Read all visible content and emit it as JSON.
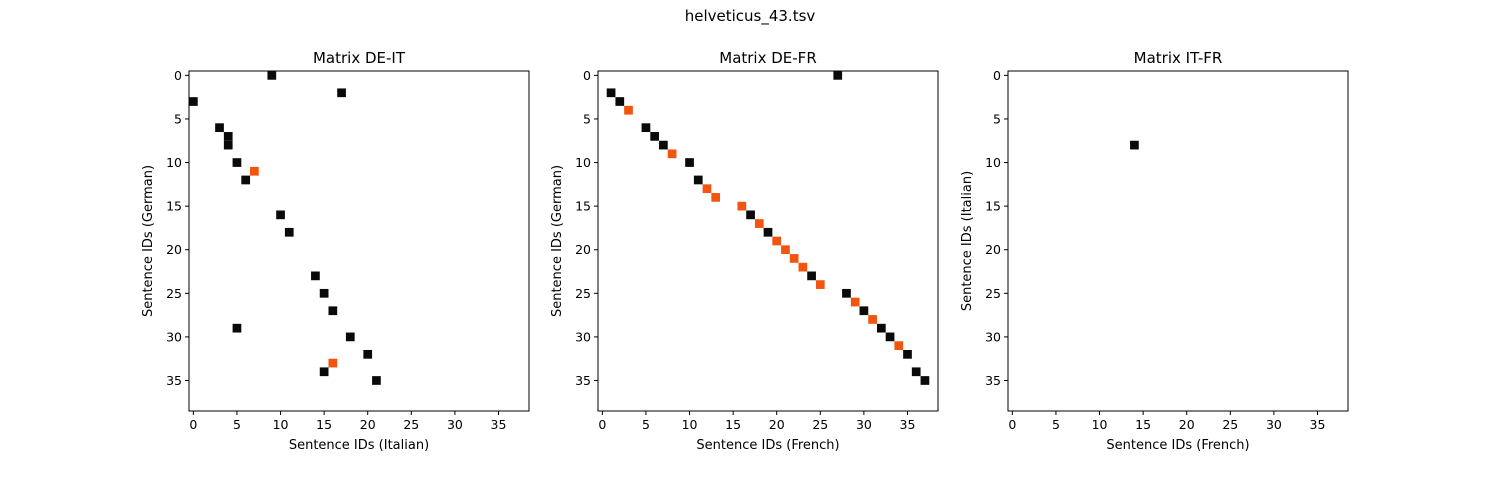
{
  "figure": {
    "suptitle": "helveticus_43.tsv"
  },
  "colors": {
    "black": "#0a0a0a",
    "orange": "#f2550f",
    "frame": "#000000",
    "background": "#ffffff"
  },
  "chart_data": [
    {
      "type": "heatmap",
      "title": "Matrix DE-IT",
      "xlabel": "Sentence IDs (Italian)",
      "ylabel": "Sentence IDs (German)",
      "xlim": [
        -0.5,
        38.5
      ],
      "ylim": [
        38.5,
        -0.5
      ],
      "xticks": [
        0,
        5,
        10,
        15,
        20,
        25,
        30,
        35
      ],
      "yticks": [
        0,
        5,
        10,
        15,
        20,
        25,
        30,
        35
      ],
      "grid": false,
      "cells": [
        {
          "x": 9,
          "y": 0,
          "color": "black"
        },
        {
          "x": 17,
          "y": 2,
          "color": "black"
        },
        {
          "x": 0,
          "y": 3,
          "color": "black"
        },
        {
          "x": 3,
          "y": 6,
          "color": "black"
        },
        {
          "x": 4,
          "y": 7,
          "color": "black"
        },
        {
          "x": 4,
          "y": 8,
          "color": "black"
        },
        {
          "x": 5,
          "y": 10,
          "color": "black"
        },
        {
          "x": 7,
          "y": 11,
          "color": "orange"
        },
        {
          "x": 6,
          "y": 12,
          "color": "black"
        },
        {
          "x": 10,
          "y": 16,
          "color": "black"
        },
        {
          "x": 11,
          "y": 18,
          "color": "black"
        },
        {
          "x": 14,
          "y": 23,
          "color": "black"
        },
        {
          "x": 15,
          "y": 25,
          "color": "black"
        },
        {
          "x": 16,
          "y": 27,
          "color": "black"
        },
        {
          "x": 5,
          "y": 29,
          "color": "black"
        },
        {
          "x": 18,
          "y": 30,
          "color": "black"
        },
        {
          "x": 20,
          "y": 32,
          "color": "black"
        },
        {
          "x": 16,
          "y": 33,
          "color": "orange"
        },
        {
          "x": 15,
          "y": 34,
          "color": "black"
        },
        {
          "x": 21,
          "y": 35,
          "color": "black"
        }
      ]
    },
    {
      "type": "heatmap",
      "title": "Matrix DE-FR",
      "xlabel": "Sentence IDs (French)",
      "ylabel": "Sentence IDs (German)",
      "xlim": [
        -0.5,
        38.5
      ],
      "ylim": [
        38.5,
        -0.5
      ],
      "xticks": [
        0,
        5,
        10,
        15,
        20,
        25,
        30,
        35
      ],
      "yticks": [
        0,
        5,
        10,
        15,
        20,
        25,
        30,
        35
      ],
      "grid": false,
      "cells": [
        {
          "x": 27,
          "y": 0,
          "color": "black"
        },
        {
          "x": 1,
          "y": 2,
          "color": "black"
        },
        {
          "x": 2,
          "y": 3,
          "color": "black"
        },
        {
          "x": 3,
          "y": 4,
          "color": "orange"
        },
        {
          "x": 5,
          "y": 6,
          "color": "black"
        },
        {
          "x": 6,
          "y": 7,
          "color": "black"
        },
        {
          "x": 7,
          "y": 8,
          "color": "black"
        },
        {
          "x": 8,
          "y": 9,
          "color": "orange"
        },
        {
          "x": 10,
          "y": 10,
          "color": "black"
        },
        {
          "x": 11,
          "y": 12,
          "color": "black"
        },
        {
          "x": 12,
          "y": 13,
          "color": "orange"
        },
        {
          "x": 13,
          "y": 14,
          "color": "orange"
        },
        {
          "x": 16,
          "y": 15,
          "color": "orange"
        },
        {
          "x": 17,
          "y": 16,
          "color": "black"
        },
        {
          "x": 18,
          "y": 17,
          "color": "orange"
        },
        {
          "x": 19,
          "y": 18,
          "color": "black"
        },
        {
          "x": 20,
          "y": 19,
          "color": "orange"
        },
        {
          "x": 21,
          "y": 20,
          "color": "orange"
        },
        {
          "x": 22,
          "y": 21,
          "color": "orange"
        },
        {
          "x": 23,
          "y": 22,
          "color": "orange"
        },
        {
          "x": 24,
          "y": 23,
          "color": "black"
        },
        {
          "x": 25,
          "y": 24,
          "color": "orange"
        },
        {
          "x": 28,
          "y": 25,
          "color": "black"
        },
        {
          "x": 29,
          "y": 26,
          "color": "orange"
        },
        {
          "x": 30,
          "y": 27,
          "color": "black"
        },
        {
          "x": 31,
          "y": 28,
          "color": "orange"
        },
        {
          "x": 32,
          "y": 29,
          "color": "black"
        },
        {
          "x": 33,
          "y": 30,
          "color": "black"
        },
        {
          "x": 34,
          "y": 31,
          "color": "orange"
        },
        {
          "x": 35,
          "y": 32,
          "color": "black"
        },
        {
          "x": 36,
          "y": 34,
          "color": "black"
        },
        {
          "x": 37,
          "y": 35,
          "color": "black"
        }
      ]
    },
    {
      "type": "heatmap",
      "title": "Matrix IT-FR",
      "xlabel": "Sentence IDs (French)",
      "ylabel": "Sentence IDs (Italian)",
      "xlim": [
        -0.5,
        38.5
      ],
      "ylim": [
        38.5,
        -0.5
      ],
      "xticks": [
        0,
        5,
        10,
        15,
        20,
        25,
        30,
        35
      ],
      "yticks": [
        0,
        5,
        10,
        15,
        20,
        25,
        30,
        35
      ],
      "grid": false,
      "cells": [
        {
          "x": 14,
          "y": 8,
          "color": "black"
        }
      ]
    }
  ]
}
